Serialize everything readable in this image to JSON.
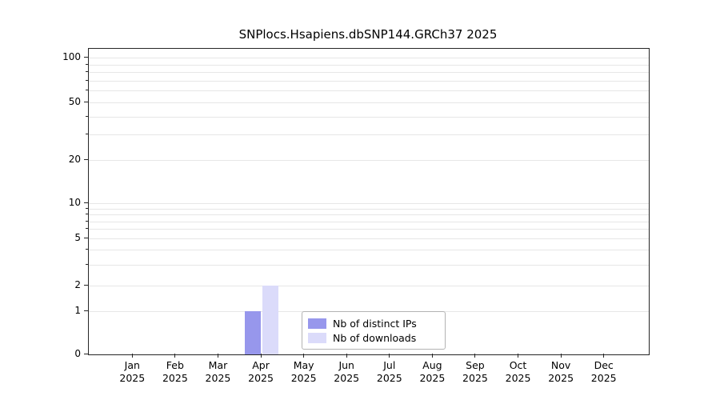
{
  "title": "SNPlocs.Hsapiens.dbSNP144.GRCh37 2025",
  "chart_data": {
    "type": "bar",
    "title": "SNPlocs.Hsapiens.dbSNP144.GRCh37 2025",
    "categories": [
      "Jan",
      "Feb",
      "Mar",
      "Apr",
      "May",
      "Jun",
      "Jul",
      "Aug",
      "Sep",
      "Oct",
      "Nov",
      "Dec"
    ],
    "year_label": "2025",
    "series": [
      {
        "name": "Nb of distinct IPs",
        "color": "#9797ec",
        "values": [
          0,
          0,
          0,
          1,
          0,
          0,
          0,
          0,
          0,
          0,
          0,
          0
        ]
      },
      {
        "name": "Nb of downloads",
        "color": "#dbdbfa",
        "values": [
          0,
          0,
          0,
          2,
          0,
          0,
          0,
          0,
          0,
          0,
          0,
          0
        ]
      }
    ],
    "yticks": [
      0,
      1,
      2,
      5,
      10,
      20,
      50,
      100
    ],
    "ylim": [
      0,
      100
    ],
    "scale": "pseudo-log",
    "grid": true,
    "legend_position": "bottom-center"
  }
}
